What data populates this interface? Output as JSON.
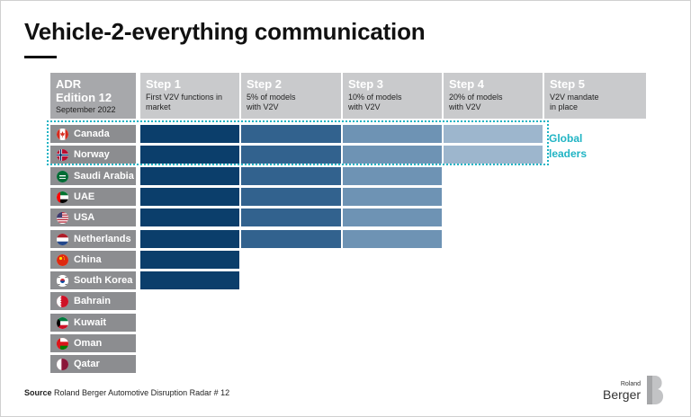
{
  "title": "Vehicle-2-everything communication",
  "header": {
    "adr_title_1": "ADR",
    "adr_title_2": "Edition 12",
    "adr_date": "September 2022"
  },
  "chart_data": {
    "type": "table",
    "steps": [
      {
        "label": "Step 1",
        "desc_1": "First V2V functions in",
        "desc_2": "market"
      },
      {
        "label": "Step 2",
        "desc_1": "5% of models",
        "desc_2": "with V2V"
      },
      {
        "label": "Step 3",
        "desc_1": "10% of models",
        "desc_2": "with V2V"
      },
      {
        "label": "Step 4",
        "desc_1": "20% of models",
        "desc_2": "with V2V"
      },
      {
        "label": "Step 5",
        "desc_1": "V2V mandate",
        "desc_2": "in place"
      }
    ],
    "countries": [
      {
        "name": "Canada",
        "steps_reached": 4,
        "flag": "canada-flag-icon"
      },
      {
        "name": "Norway",
        "steps_reached": 4,
        "flag": "norway-flag-icon"
      },
      {
        "name": "Saudi Arabia",
        "steps_reached": 3,
        "flag": "saudi-arabia-flag-icon"
      },
      {
        "name": "UAE",
        "steps_reached": 3,
        "flag": "uae-flag-icon"
      },
      {
        "name": "USA",
        "steps_reached": 3,
        "flag": "usa-flag-icon"
      },
      {
        "name": "Netherlands",
        "steps_reached": 3,
        "flag": "netherlands-flag-icon"
      },
      {
        "name": "China",
        "steps_reached": 1,
        "flag": "china-flag-icon"
      },
      {
        "name": "South Korea",
        "steps_reached": 1,
        "flag": "south-korea-flag-icon"
      },
      {
        "name": "Bahrain",
        "steps_reached": 0,
        "flag": "bahrain-flag-icon"
      },
      {
        "name": "Kuwait",
        "steps_reached": 0,
        "flag": "kuwait-flag-icon"
      },
      {
        "name": "Oman",
        "steps_reached": 0,
        "flag": "oman-flag-icon"
      },
      {
        "name": "Qatar",
        "steps_reached": 0,
        "flag": "qatar-flag-icon"
      }
    ],
    "step_colors": [
      "#0b3e6b",
      "#32628e",
      "#6e93b4",
      "#9db6cd"
    ],
    "highlight": {
      "label_1": "Global",
      "label_2": "leaders",
      "countries": [
        "Canada",
        "Norway"
      ],
      "color": "#20b4c4"
    }
  },
  "source": {
    "label": "Source",
    "text": "Roland Berger Automotive Disruption Radar # 12"
  },
  "logo": {
    "line1": "Roland",
    "line2": "Berger"
  }
}
